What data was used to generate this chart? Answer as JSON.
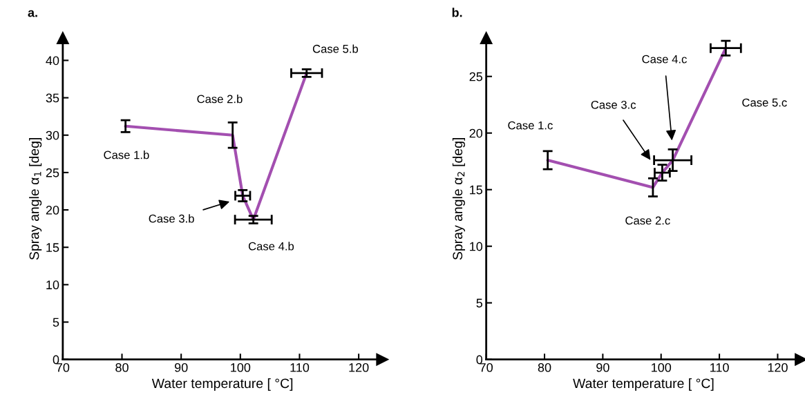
{
  "chart_data": [
    {
      "type": "line",
      "title": "a.",
      "xlabel": "Water temperature [ °C]",
      "ylabel": "Spray angle α$_{1}$ [deg]",
      "x": [
        80.6,
        98.7,
        100.4,
        102.2,
        111.2
      ],
      "series": [
        {
          "color": "#a34fb0",
          "values": [
            31.2,
            30.0,
            21.9,
            18.7,
            38.3
          ],
          "errors": [
            0.8,
            1.7,
            0.75,
            0.5,
            0.5
          ],
          "xerrors": [
            null,
            null,
            1.25,
            3.1,
            2.6
          ]
        }
      ],
      "xlim": [
        70,
        124
      ],
      "xticks": [
        70,
        80,
        90,
        100,
        110,
        120
      ],
      "ylim": [
        0,
        43
      ],
      "yticks": [
        0,
        5,
        10,
        15,
        20,
        25,
        30,
        35,
        40
      ],
      "grid": false,
      "legend": false,
      "marker": "none",
      "line_style": "solid",
      "annotations": [
        "Case 1.b",
        "Case 2.b",
        "Case 3.b",
        "Case 4.b",
        "Case 5.b"
      ]
    },
    {
      "type": "line",
      "title": "b.",
      "xlabel": "Water temperature [ °C]",
      "ylabel": "Spray angle α$_{2}$ [deg]",
      "x": [
        80.55,
        98.6,
        100.2,
        102.0,
        111.1
      ],
      "series": [
        {
          "color": "#a34fb0",
          "values": [
            17.6,
            15.2,
            16.5,
            17.6,
            27.5
          ],
          "errors": [
            0.8,
            0.8,
            0.7,
            0.95,
            0.65
          ],
          "xerrors": [
            null,
            null,
            1.3,
            3.2,
            2.6
          ]
        }
      ],
      "xlim": [
        70,
        124
      ],
      "xticks": [
        70,
        80,
        90,
        100,
        110,
        120
      ],
      "ylim": [
        0,
        28.4
      ],
      "yticks": [
        0,
        5,
        10,
        15,
        20,
        25
      ],
      "grid": false,
      "legend": false,
      "marker": "none",
      "line_style": "solid",
      "annotations": [
        "Case 1.c",
        "Case 2.c",
        "Case 3.c",
        "Case 4.c",
        "Case 5.c"
      ]
    }
  ]
}
